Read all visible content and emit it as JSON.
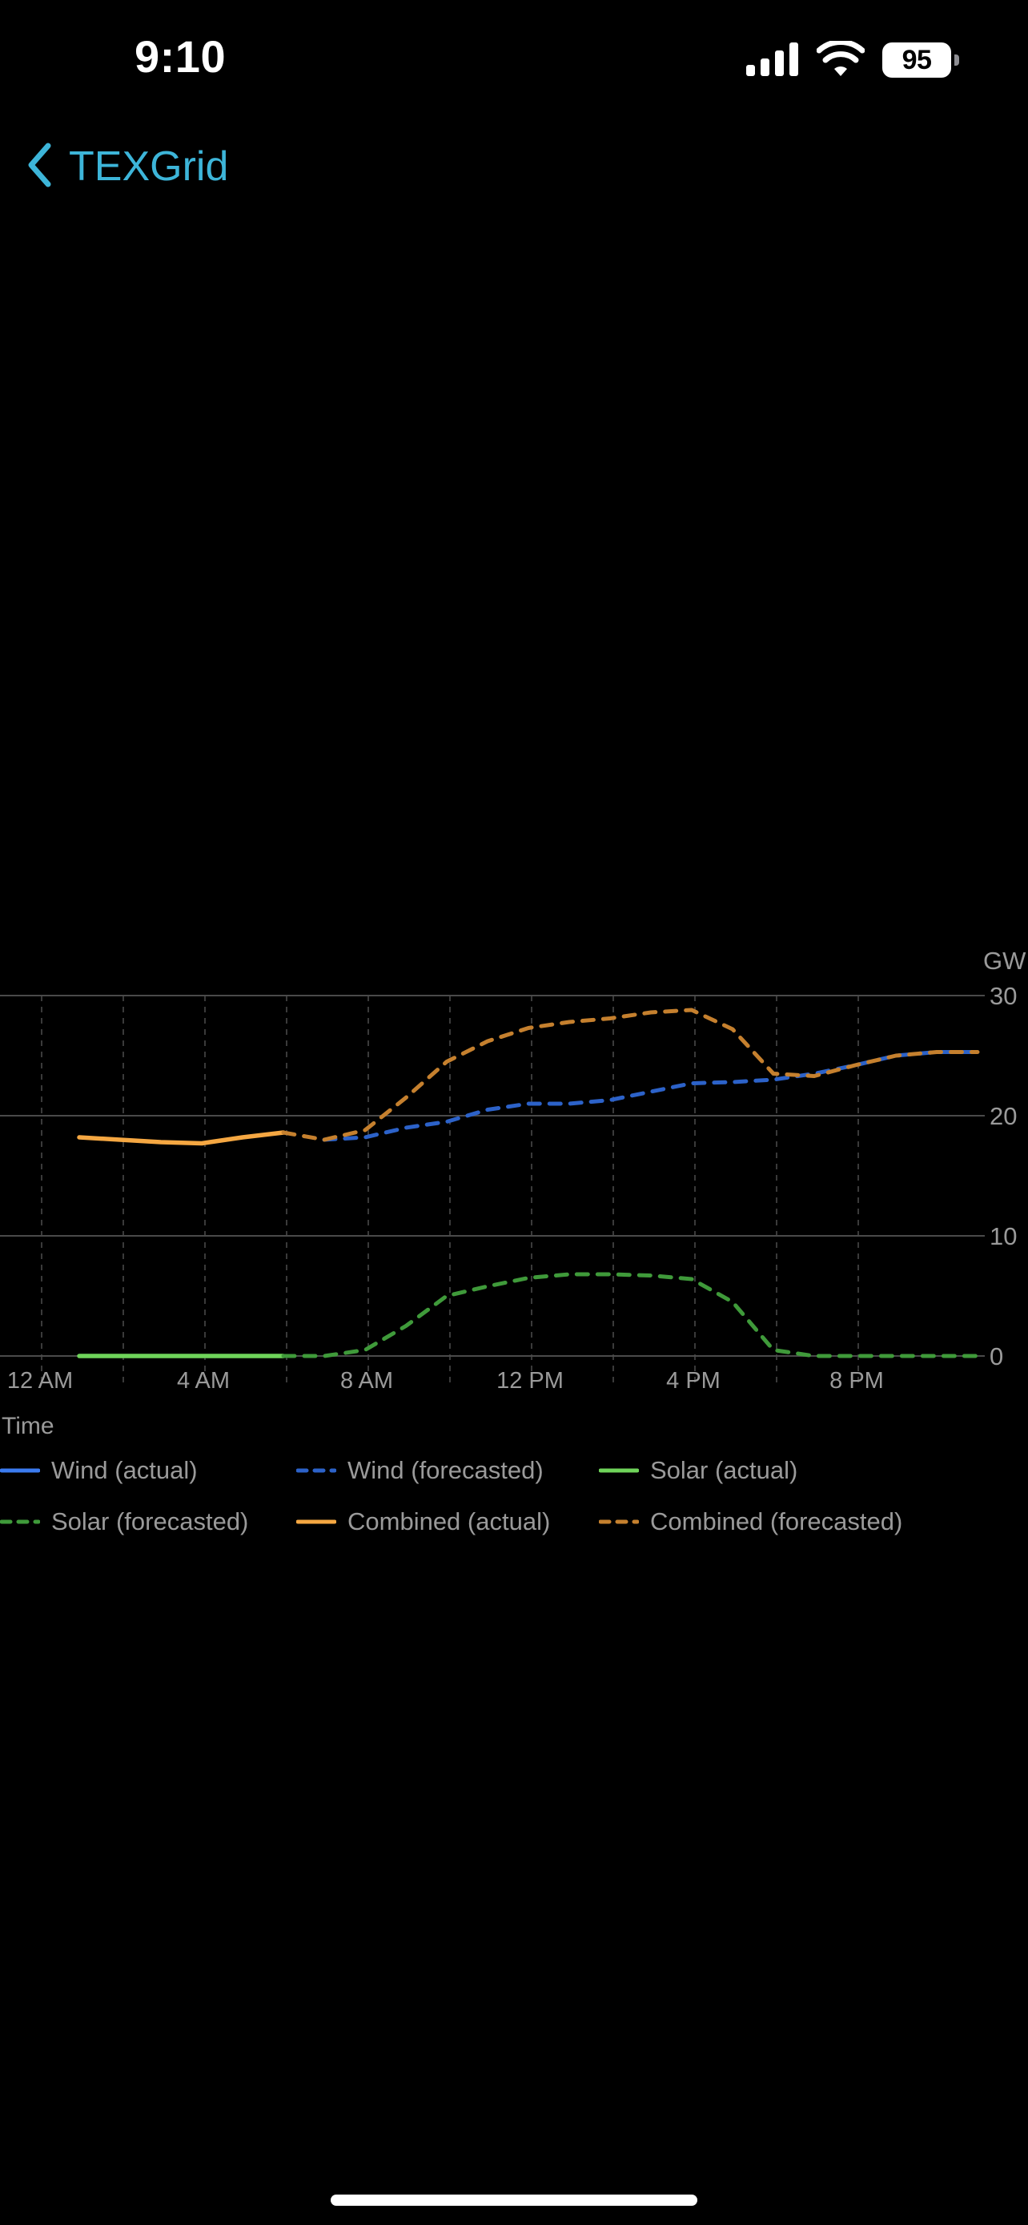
{
  "status_bar": {
    "time": "9:10",
    "battery": "95"
  },
  "nav": {
    "back_label": "TEXGrid",
    "accent_color": "#3db5d9"
  },
  "chart_data": {
    "type": "line",
    "ylabel": "GW",
    "xlabel": "Time",
    "ylim": [
      0,
      30
    ],
    "yticks": [
      0,
      10,
      20,
      30
    ],
    "xlim": [
      0,
      23.5
    ],
    "x_ticks": [
      {
        "value": 0,
        "label": "12 AM"
      },
      {
        "value": 4,
        "label": "4 AM"
      },
      {
        "value": 8,
        "label": "8 AM"
      },
      {
        "value": 12,
        "label": "12 PM"
      },
      {
        "value": 16,
        "label": "4 PM"
      },
      {
        "value": 20,
        "label": "8 PM"
      }
    ],
    "grid": true,
    "legend_position": "bottom",
    "series": [
      {
        "name": "Wind (actual)",
        "style": "solid",
        "color": "#3b7bf0",
        "x": [],
        "values": []
      },
      {
        "name": "Wind (forecasted)",
        "style": "dashed",
        "color": "#2c62c9",
        "x": [
          7,
          8,
          9,
          10,
          11,
          12,
          13,
          14,
          15,
          16,
          17,
          18,
          19,
          20,
          21,
          22,
          23
        ],
        "values": [
          18,
          18.2,
          19,
          19.5,
          20.5,
          21,
          21,
          21.3,
          22,
          22.7,
          22.8,
          23,
          23.5,
          24.2,
          25,
          25.3,
          25.3
        ]
      },
      {
        "name": "Solar (actual)",
        "style": "solid",
        "color": "#6fd45a",
        "x": [
          1,
          2,
          3,
          4,
          5,
          6
        ],
        "values": [
          0,
          0,
          0,
          0,
          0,
          0
        ]
      },
      {
        "name": "Solar (forecasted)",
        "style": "dashed",
        "color": "#3f9a3a",
        "x": [
          6,
          7,
          8,
          9,
          10,
          11,
          12,
          13,
          14,
          15,
          16,
          17,
          18,
          19,
          20,
          21,
          22,
          23
        ],
        "values": [
          0,
          0,
          0.5,
          2.5,
          5,
          5.8,
          6.5,
          6.8,
          6.8,
          6.7,
          6.4,
          4.5,
          0.5,
          0,
          0,
          0,
          0,
          0
        ]
      },
      {
        "name": "Combined (actual)",
        "style": "solid",
        "color": "#f5a742",
        "x": [
          1,
          2,
          3,
          4,
          5,
          6
        ],
        "values": [
          18.2,
          18,
          17.8,
          17.7,
          18.2,
          18.6
        ]
      },
      {
        "name": "Combined (forecasted)",
        "style": "dashed",
        "color": "#c5802e",
        "x": [
          6,
          7,
          8,
          9,
          10,
          11,
          12,
          13,
          14,
          15,
          16,
          17,
          18,
          19,
          20,
          21,
          22,
          23
        ],
        "values": [
          18.6,
          18,
          18.8,
          21.5,
          24.5,
          26.2,
          27.3,
          27.8,
          28.1,
          28.6,
          28.8,
          27.2,
          23.5,
          23.3,
          24.2,
          25,
          25.3,
          25.3
        ]
      }
    ]
  }
}
